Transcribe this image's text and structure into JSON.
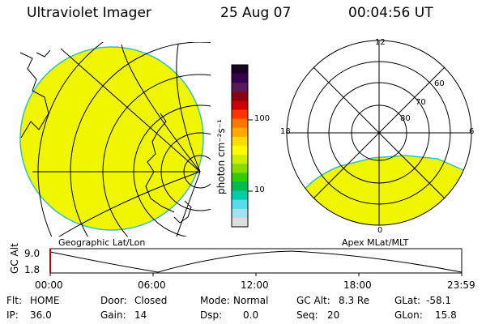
{
  "header": {
    "instrument": "Ultraviolet Imager",
    "date": "25 Aug 07",
    "time": "00:04:56 UT"
  },
  "left_panel": {
    "caption": "Geographic Lat/Lon"
  },
  "right_panel": {
    "caption": "Apex MLat/MLT",
    "mlt_labels": {
      "top": "12",
      "left": "18",
      "right": "6",
      "bottom": "0"
    },
    "lat_labels": [
      "60",
      "70",
      "80"
    ]
  },
  "colorbar": {
    "unit_label": "photon cm⁻²s⁻¹",
    "ticks": [
      "100",
      "10"
    ],
    "colors_top_to_bottom": [
      "#1a0028",
      "#3a0050",
      "#5a1a5a",
      "#8a0010",
      "#cc0000",
      "#ff3300",
      "#ff7700",
      "#ffaa00",
      "#ffdd00",
      "#ffff00",
      "#ccee00",
      "#88dd00",
      "#33cc00",
      "#00bb55",
      "#00ccaa",
      "#55ddee",
      "#aaddee",
      "#dddddd"
    ]
  },
  "altitude_plot": {
    "ylabel": "GC Alt",
    "y_ticks": [
      "9.0",
      "1.8"
    ],
    "x_ticks": [
      "00:00",
      "06:00",
      "12:00",
      "18:00",
      "23:59"
    ]
  },
  "status": {
    "flt_label": "Flt:",
    "flt_value": "HOME",
    "ip_label": "IP:",
    "ip_value": "36.0",
    "door_label": "Door:",
    "door_value": "Closed",
    "gain_label": "Gain:",
    "gain_value": "14",
    "mode_label": "Mode:",
    "mode_value": "Normal",
    "dsp_label": "Dsp:",
    "dsp_value": "0.0",
    "gcalt_label": "GC Alt:",
    "gcalt_value": "8.3 Re",
    "seq_label": "Seq:",
    "seq_value": "20",
    "glat_label": "GLat:",
    "glat_value": "-58.1",
    "glon_label": "GLon:",
    "glon_value": "15.8"
  },
  "colors": {
    "emission_fill": "#f0f500",
    "emission_edge": "#30c0d0",
    "marker": "#cc0000"
  }
}
